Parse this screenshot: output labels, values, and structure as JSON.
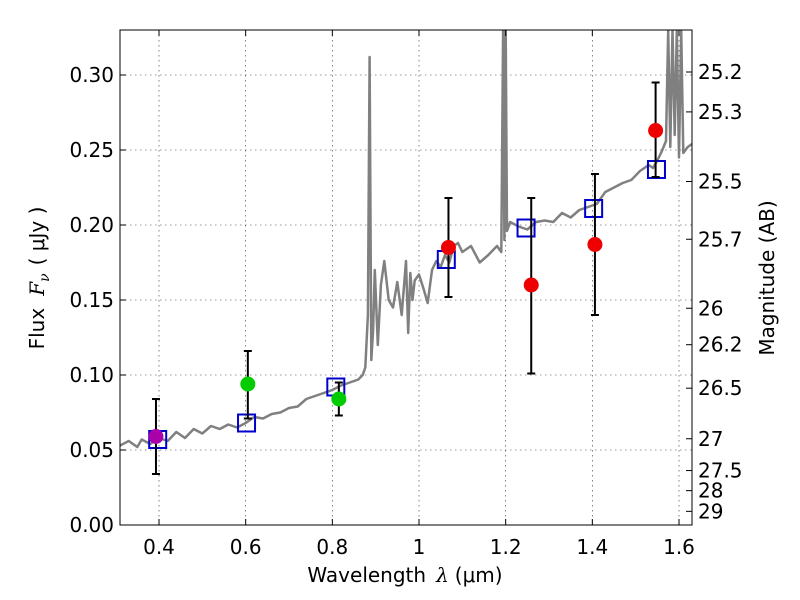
{
  "chart_data": {
    "type": "scatter",
    "xlabel": "Wavelength",
    "xlabel_symbol": "λ",
    "xlabel_units": "(μm)",
    "ylabel": "Flux",
    "ylabel_symbol": "F",
    "ylabel_subscript": "ν",
    "ylabel_units": "( μJy )",
    "y2label": "Magnitude (AB)",
    "xlim": [
      0.31,
      1.63
    ],
    "ylim": [
      0.0,
      0.33
    ],
    "grid": true,
    "colors": {
      "spectrum": "#808080",
      "model_box": "#0000cc",
      "point_violet": "#aa00aa",
      "point_green": "#00cc00",
      "point_red": "#ee0000",
      "errorbar": "#000000"
    },
    "x_ticks": [
      {
        "value": 0.4,
        "label": "0.4"
      },
      {
        "value": 0.6,
        "label": "0.6"
      },
      {
        "value": 0.8,
        "label": "0.8"
      },
      {
        "value": 1.0,
        "label": "1"
      },
      {
        "value": 1.2,
        "label": "1.2"
      },
      {
        "value": 1.4,
        "label": "1.4"
      },
      {
        "value": 1.6,
        "label": "1.6"
      }
    ],
    "y_ticks": [
      {
        "value": 0.0,
        "label": "0.00"
      },
      {
        "value": 0.05,
        "label": "0.05"
      },
      {
        "value": 0.1,
        "label": "0.10"
      },
      {
        "value": 0.15,
        "label": "0.15"
      },
      {
        "value": 0.2,
        "label": "0.20"
      },
      {
        "value": 0.25,
        "label": "0.25"
      },
      {
        "value": 0.3,
        "label": "0.30"
      }
    ],
    "magnitude_ticks": [
      {
        "flux": 0.302,
        "label": "25.2"
      },
      {
        "flux": 0.2754,
        "label": "25.3"
      },
      {
        "flux": 0.229,
        "label": "25.5"
      },
      {
        "flux": 0.1905,
        "label": "25.7"
      },
      {
        "flux": 0.1445,
        "label": "26"
      },
      {
        "flux": 0.1202,
        "label": "26.2"
      },
      {
        "flux": 0.0912,
        "label": "26.5"
      },
      {
        "flux": 0.0575,
        "label": "27"
      },
      {
        "flux": 0.0363,
        "label": "27.5"
      },
      {
        "flux": 0.0229,
        "label": "28"
      },
      {
        "flux": 0.0091,
        "label": "29"
      }
    ],
    "spectrum": {
      "x": [
        0.31,
        0.33,
        0.35,
        0.36,
        0.38,
        0.4,
        0.42,
        0.44,
        0.46,
        0.48,
        0.5,
        0.52,
        0.54,
        0.56,
        0.58,
        0.6,
        0.62,
        0.64,
        0.66,
        0.68,
        0.7,
        0.72,
        0.74,
        0.76,
        0.78,
        0.8,
        0.82,
        0.84,
        0.86,
        0.87,
        0.876,
        0.882,
        0.886,
        0.89,
        0.894,
        0.898,
        0.905,
        0.912,
        0.92,
        0.93,
        0.94,
        0.95,
        0.96,
        0.97,
        0.975,
        0.98,
        0.985,
        0.99,
        1.0,
        1.01,
        1.02,
        1.03,
        1.04,
        1.05,
        1.06,
        1.07,
        1.08,
        1.09,
        1.1,
        1.12,
        1.14,
        1.16,
        1.18,
        1.19,
        1.194,
        1.197,
        1.2,
        1.203,
        1.21,
        1.23,
        1.25,
        1.27,
        1.29,
        1.31,
        1.33,
        1.35,
        1.37,
        1.39,
        1.41,
        1.43,
        1.45,
        1.47,
        1.49,
        1.51,
        1.53,
        1.54,
        1.55,
        1.56,
        1.57,
        1.575,
        1.58,
        1.585,
        1.59,
        1.595,
        1.6,
        1.605,
        1.61,
        1.62,
        1.63
      ],
      "y": [
        0.053,
        0.056,
        0.052,
        0.057,
        0.054,
        0.058,
        0.056,
        0.062,
        0.058,
        0.064,
        0.061,
        0.066,
        0.064,
        0.067,
        0.065,
        0.068,
        0.072,
        0.071,
        0.074,
        0.075,
        0.078,
        0.079,
        0.084,
        0.086,
        0.088,
        0.09,
        0.093,
        0.095,
        0.097,
        0.1,
        0.105,
        0.14,
        0.312,
        0.11,
        0.13,
        0.17,
        0.12,
        0.16,
        0.176,
        0.15,
        0.145,
        0.162,
        0.14,
        0.176,
        0.128,
        0.168,
        0.15,
        0.163,
        0.167,
        0.158,
        0.148,
        0.17,
        0.176,
        0.172,
        0.18,
        0.175,
        0.186,
        0.188,
        0.182,
        0.186,
        0.175,
        0.18,
        0.186,
        0.182,
        0.33,
        0.19,
        0.33,
        0.196,
        0.202,
        0.199,
        0.197,
        0.202,
        0.203,
        0.202,
        0.208,
        0.205,
        0.21,
        0.212,
        0.214,
        0.222,
        0.225,
        0.228,
        0.23,
        0.236,
        0.24,
        0.238,
        0.243,
        0.249,
        0.256,
        0.33,
        0.252,
        0.33,
        0.26,
        0.33,
        0.245,
        0.33,
        0.248,
        0.252,
        0.254
      ]
    },
    "model_boxes": [
      {
        "x": 0.397,
        "y": 0.057
      },
      {
        "x": 0.602,
        "y": 0.068
      },
      {
        "x": 0.808,
        "y": 0.092
      },
      {
        "x": 1.063,
        "y": 0.177
      },
      {
        "x": 1.247,
        "y": 0.198
      },
      {
        "x": 1.403,
        "y": 0.211
      },
      {
        "x": 1.548,
        "y": 0.237
      }
    ],
    "points": [
      {
        "band": "violet",
        "x": 0.393,
        "y": 0.059,
        "yerr_low": 0.034,
        "yerr_high": 0.084
      },
      {
        "band": "green",
        "x": 0.605,
        "y": 0.094,
        "yerr_low": 0.071,
        "yerr_high": 0.116
      },
      {
        "band": "green",
        "x": 0.815,
        "y": 0.084,
        "yerr_low": 0.073,
        "yerr_high": 0.095
      },
      {
        "band": "red",
        "x": 1.068,
        "y": 0.185,
        "yerr_low": 0.152,
        "yerr_high": 0.218
      },
      {
        "band": "red",
        "x": 1.259,
        "y": 0.16,
        "yerr_low": 0.101,
        "yerr_high": 0.218
      },
      {
        "band": "red",
        "x": 1.406,
        "y": 0.187,
        "yerr_low": 0.14,
        "yerr_high": 0.234
      },
      {
        "band": "red",
        "x": 1.546,
        "y": 0.263,
        "yerr_low": 0.232,
        "yerr_high": 0.295
      }
    ]
  }
}
